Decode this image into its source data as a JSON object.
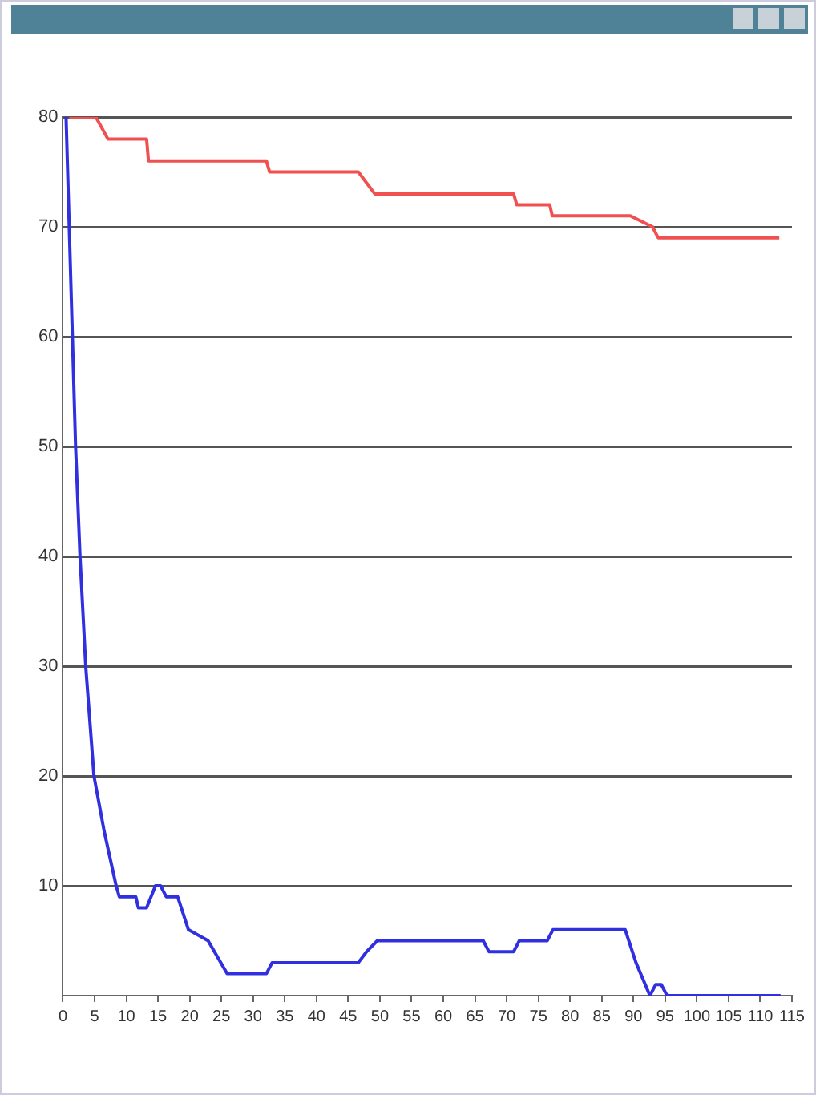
{
  "chart_data": {
    "type": "line",
    "xlim": [
      0,
      115
    ],
    "xticks": [
      0,
      5,
      10,
      15,
      20,
      25,
      30,
      35,
      40,
      45,
      50,
      55,
      60,
      65,
      70,
      75,
      80,
      85,
      90,
      95,
      100,
      105,
      110,
      115
    ],
    "ylim": [
      0,
      80
    ],
    "yticks": [
      10,
      20,
      30,
      40,
      50,
      60,
      70,
      80
    ],
    "grid": "y",
    "marker": "none",
    "line_style": "solid",
    "series": [
      {
        "color": "#f05050",
        "x": [
          1,
          5.2,
          7.1,
          13.2,
          13.5,
          32.1,
          32.6,
          46.6,
          49.2,
          71.1,
          71.6,
          76.8,
          77.2,
          89.5,
          93,
          93.9,
          113
        ],
        "values": [
          80,
          80,
          78,
          78,
          76,
          76,
          75,
          75,
          73,
          73,
          72,
          72,
          71,
          71,
          70,
          69,
          69
        ]
      },
      {
        "color": "#3030e0",
        "x": [
          0.5,
          1,
          1.5,
          2,
          2.7,
          3.6,
          4.9,
          6.5,
          8.4,
          8.9,
          11.5,
          11.9,
          13.2,
          14.6,
          15.4,
          16.3,
          18.1,
          19.8,
          22.9,
          25.9,
          32.1,
          33,
          46.6,
          47.9,
          49.6,
          66.3,
          67.2,
          71.1,
          72,
          76.4,
          77.3,
          88.7,
          90.4,
          92.6,
          93.5,
          94.4,
          95.3,
          113.2
        ],
        "values": [
          80,
          70,
          60,
          50,
          40,
          30,
          20,
          15,
          10,
          9,
          9,
          8,
          8,
          10,
          10,
          9,
          9,
          6,
          5,
          2,
          2,
          3,
          3,
          4,
          5,
          5,
          4,
          4,
          5,
          5,
          6,
          6,
          3,
          0,
          1,
          1,
          0,
          0
        ]
      }
    ]
  }
}
